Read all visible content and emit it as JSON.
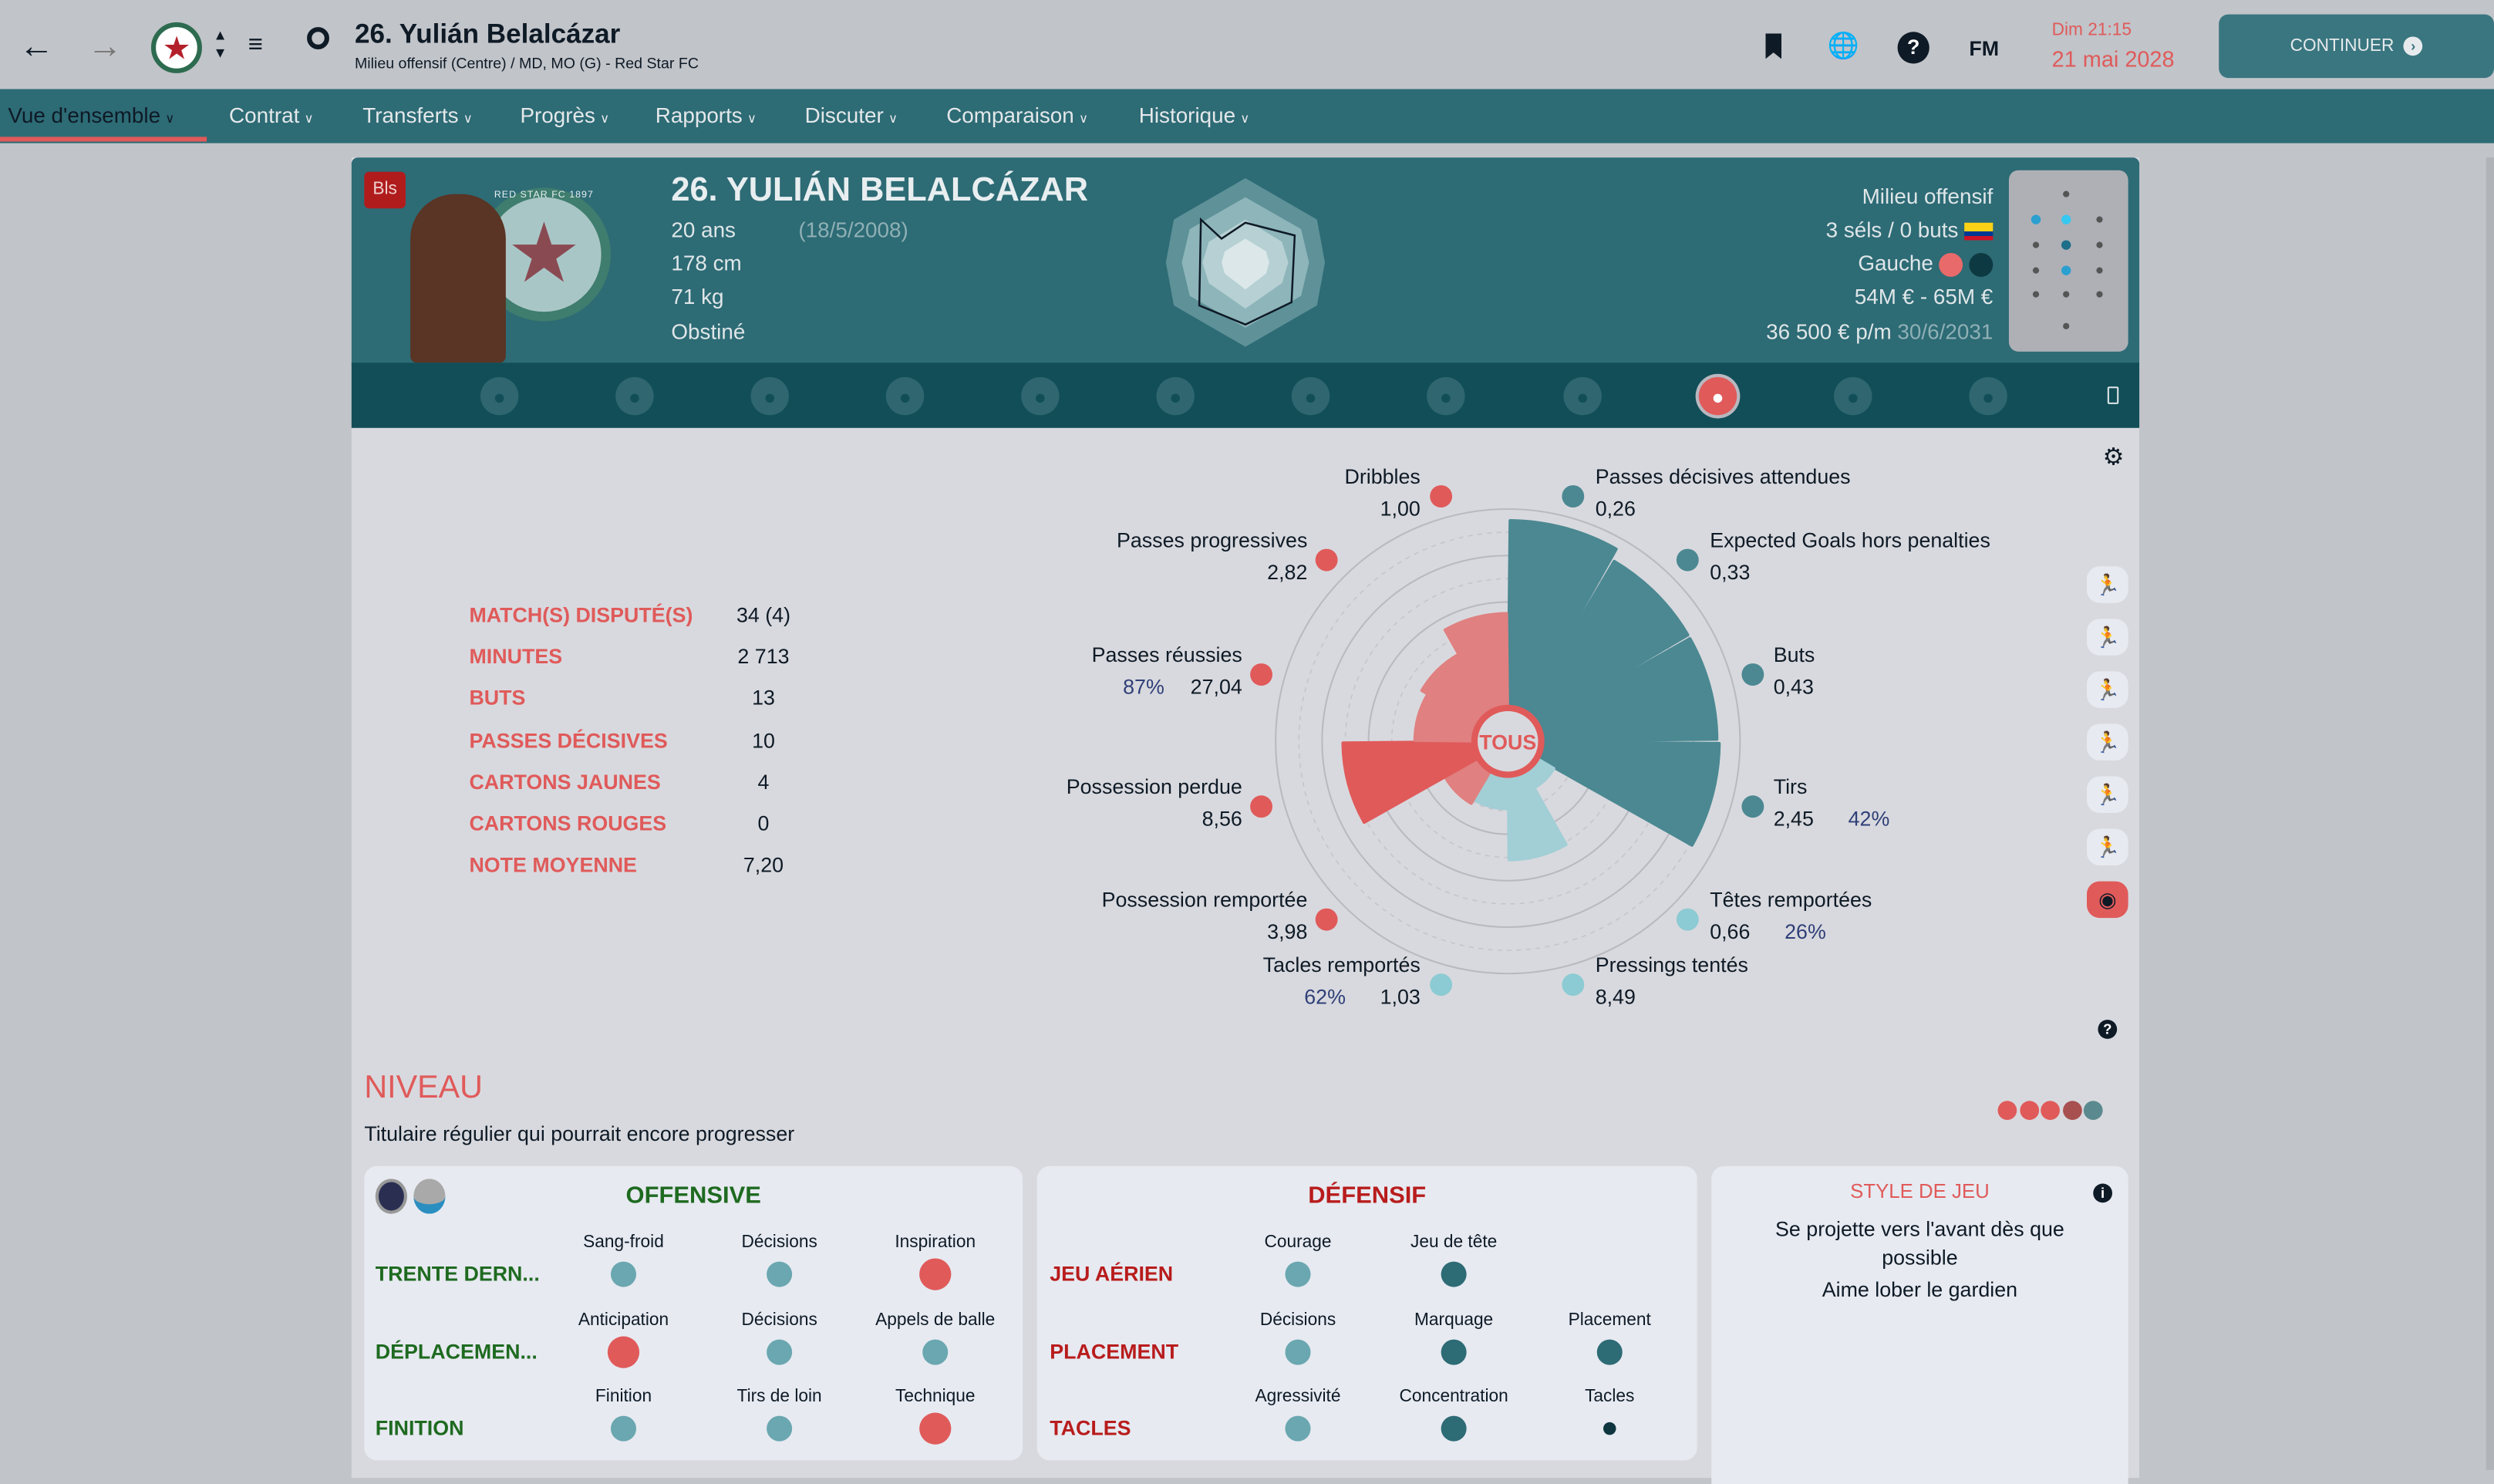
{
  "header": {
    "title": "26. Yulián Belalcázar",
    "subtitle": "Milieu offensif (Centre) / MD, MO (G) - Red Star FC",
    "time": "Dim 21:15",
    "date": "21 mai 2028",
    "continue_label": "CONTINUER",
    "fm_label": "FM"
  },
  "nav": [
    {
      "label": "Vue d'ensemble",
      "active": true
    },
    {
      "label": "Contrat"
    },
    {
      "label": "Transferts"
    },
    {
      "label": "Progrès"
    },
    {
      "label": "Rapports"
    },
    {
      "label": "Discuter"
    },
    {
      "label": "Comparaison"
    },
    {
      "label": "Historique"
    }
  ],
  "player": {
    "badge": "Bls",
    "name": "26. YULIÁN BELALCÁZAR",
    "age": "20 ans",
    "dob": "(18/5/2008)",
    "height": "178 cm",
    "weight": "71 kg",
    "personality": "Obstiné",
    "position": "Milieu offensif",
    "caps": "3 séls / 0 buts",
    "foot": "Gauche",
    "value": "54M € - 65M €",
    "wage": "36 500 € p/m",
    "contract_end": "30/6/2031",
    "club_logo_text": "RED STAR FC 1897"
  },
  "stats": [
    {
      "label": "MATCH(S) DISPUTÉ(S)",
      "value": "34 (4)"
    },
    {
      "label": "MINUTES",
      "value": "2 713"
    },
    {
      "label": "BUTS",
      "value": "13"
    },
    {
      "label": "PASSES DÉCISIVES",
      "value": "10"
    },
    {
      "label": "CARTONS JAUNES",
      "value": "4"
    },
    {
      "label": "CARTONS ROUGES",
      "value": "0"
    },
    {
      "label": "NOTE MOYENNE",
      "value": "7,20"
    }
  ],
  "chart_data": {
    "type": "polar-bar",
    "center_label": "TOUS",
    "colors": {
      "attack": "#4b8892",
      "passing": "#e08080",
      "possession_lost": "#e05a5a",
      "defence": "#a2ced6"
    },
    "categories": [
      {
        "name": "Passes décisives attendues",
        "value": "0,26",
        "percentile": 95,
        "group": "attack"
      },
      {
        "name": "Expected Goals hors penalties",
        "value": "0,33",
        "percentile": 90,
        "group": "attack"
      },
      {
        "name": "Buts",
        "value": "0,43",
        "percentile": 90,
        "group": "attack"
      },
      {
        "name": "Tirs",
        "value": "2,45",
        "extra": "42%",
        "percentile": 91,
        "group": "attack"
      },
      {
        "name": "Têtes remportées",
        "value": "0,66",
        "extra": "26%",
        "percentile": 23,
        "group": "defence"
      },
      {
        "name": "Pressings tentés",
        "value": "8,49",
        "percentile": 51,
        "group": "defence"
      },
      {
        "name": "Tacles remportés",
        "value": "1,03",
        "extra": "62%",
        "percentile": 29,
        "group": "defence"
      },
      {
        "name": "Possession remportée",
        "value": "3,98",
        "percentile": 31,
        "group": "passing"
      },
      {
        "name": "Possession perdue",
        "value": "8,56",
        "percentile": 71,
        "group": "possession_lost"
      },
      {
        "name": "Passes réussies",
        "value": "27,04",
        "extra": "87%",
        "percentile": 40,
        "group": "passing"
      },
      {
        "name": "Passes progressives",
        "value": "2,82",
        "percentile": 43,
        "group": "passing"
      },
      {
        "name": "Dribbles",
        "value": "1,00",
        "percentile": 55,
        "group": "passing"
      }
    ]
  },
  "niveau": {
    "title": "NIVEAU",
    "description": "Titulaire régulier qui pourrait encore progresser",
    "dots": [
      "#e05a5a",
      "#e05a5a",
      "#e05a5a",
      "#a85050",
      "#5a8a8f"
    ]
  },
  "offensive": {
    "title": "OFFENSIVE",
    "rows": [
      {
        "name": "TRENTE DERN...",
        "attrs": [
          {
            "name": "Sang-froid",
            "color": "#6aa7b0"
          },
          {
            "name": "Décisions",
            "color": "#6aa7b0"
          },
          {
            "name": "Inspiration",
            "color": "#e05a5a"
          }
        ]
      },
      {
        "name": "DÉPLACEMEN...",
        "attrs": [
          {
            "name": "Anticipation",
            "color": "#e05a5a"
          },
          {
            "name": "Décisions",
            "color": "#6aa7b0"
          },
          {
            "name": "Appels de balle",
            "color": "#6aa7b0"
          }
        ]
      },
      {
        "name": "FINITION",
        "attrs": [
          {
            "name": "Finition",
            "color": "#6aa7b0"
          },
          {
            "name": "Tirs de loin",
            "color": "#6aa7b0"
          },
          {
            "name": "Technique",
            "color": "#e05a5a"
          }
        ]
      }
    ]
  },
  "defensive": {
    "title": "DÉFENSIF",
    "rows": [
      {
        "name": "JEU AÉRIEN",
        "attrs": [
          {
            "name": "Courage",
            "color": "#6aa7b0"
          },
          {
            "name": "Jeu de tête",
            "color": "#2d6b75"
          }
        ]
      },
      {
        "name": "PLACEMENT",
        "attrs": [
          {
            "name": "Décisions",
            "color": "#6aa7b0"
          },
          {
            "name": "Marquage",
            "color": "#2d6b75"
          },
          {
            "name": "Placement",
            "color": "#2d6b75"
          }
        ]
      },
      {
        "name": "TACLES",
        "attrs": [
          {
            "name": "Agressivité",
            "color": "#6aa7b0"
          },
          {
            "name": "Concentration",
            "color": "#2d6b75"
          },
          {
            "name": "Tacles",
            "color": "#0e3540"
          }
        ]
      }
    ]
  },
  "style": {
    "title": "STYLE DE JEU",
    "lines": [
      "Se projette vers l'avant dès que possible",
      "Aime lober le gardien"
    ]
  }
}
